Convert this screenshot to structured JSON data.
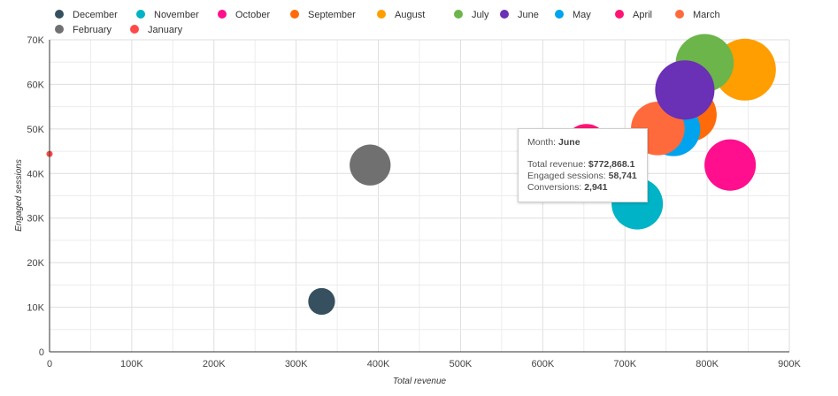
{
  "chart_data": {
    "type": "scatter",
    "xlabel": "Total revenue",
    "ylabel": "Engaged sessions",
    "xlim": [
      0,
      900000
    ],
    "ylim": [
      0,
      70000
    ],
    "x_ticks": [
      "0",
      "100K",
      "200K",
      "300K",
      "400K",
      "500K",
      "600K",
      "700K",
      "800K",
      "900K"
    ],
    "y_ticks": [
      "0",
      "10K",
      "20K",
      "30K",
      "40K",
      "50K",
      "60K",
      "70K"
    ],
    "grid": true,
    "legend_position": "top",
    "series": [
      {
        "name": "December",
        "color": "#37505f",
        "x": 331000,
        "y": 11300,
        "conversions": 600
      },
      {
        "name": "November",
        "color": "#00b3c6",
        "x": 715000,
        "y": 33200,
        "conversions": 2200
      },
      {
        "name": "October",
        "color": "#ff0e8d",
        "x": 828000,
        "y": 41900,
        "conversions": 2200
      },
      {
        "name": "September",
        "color": "#ff6b0a",
        "x": 779000,
        "y": 53200,
        "conversions": 2400
      },
      {
        "name": "August",
        "color": "#ff9e00",
        "x": 846000,
        "y": 63300,
        "conversions": 3200
      },
      {
        "name": "July",
        "color": "#6bb54a",
        "x": 797000,
        "y": 64800,
        "conversions": 2800
      },
      {
        "name": "June",
        "color": "#6a30b5",
        "x": 772868.1,
        "y": 58741,
        "conversions": 2941
      },
      {
        "name": "May",
        "color": "#00a3ee",
        "x": 759000,
        "y": 49900,
        "conversions": 2400
      },
      {
        "name": "April",
        "color": "#ff1474",
        "x": 653000,
        "y": 46200,
        "conversions": 1600
      },
      {
        "name": "March",
        "color": "#ff6a3d",
        "x": 740000,
        "y": 50100,
        "conversions": 2400
      },
      {
        "name": "February",
        "color": "#707070",
        "x": 390000,
        "y": 41900,
        "conversions": 1400
      },
      {
        "name": "January",
        "color": "#ff4a4a",
        "x": 0,
        "y": 44400,
        "conversions": 0
      }
    ],
    "tooltip": {
      "month_label": "Month:",
      "month_value": "June",
      "revenue_label": "Total revenue:",
      "revenue_value": "$772,868.1",
      "sessions_label": "Engaged sessions:",
      "sessions_value": "58,741",
      "conversions_label": "Conversions:",
      "conversions_value": "2,941"
    }
  }
}
